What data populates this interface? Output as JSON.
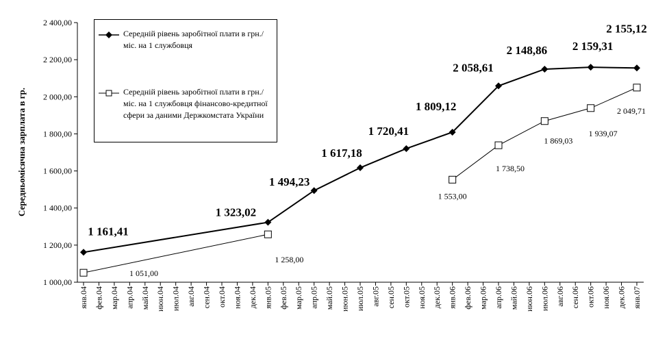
{
  "chart_data": {
    "type": "line",
    "y_label": "Середньомісячна зарплата в гр.",
    "categories": [
      "янв.04",
      "фев.04",
      "мар.04",
      "апр.04",
      "май.04",
      "июн.04",
      "июл.04",
      "авг.04",
      "сен.04",
      "окт.04",
      "ноя.04",
      "дек.04",
      "янв.05",
      "фев.05",
      "мар.05",
      "апр.05",
      "май.05",
      "июн.05",
      "июл.05",
      "авг.05",
      "сен.05",
      "окт.05",
      "ноя.05",
      "дек.05",
      "янв.06",
      "фев.06",
      "мар.06",
      "апр.06",
      "май.06",
      "июн.06",
      "июл.06",
      "авг.06",
      "сен.06",
      "окт.06",
      "ноя.06",
      "дек.06",
      "янв.07"
    ],
    "ylim": [
      1000,
      2400
    ],
    "yticks": [
      {
        "value": 1000,
        "label": "1 000,00"
      },
      {
        "value": 1200,
        "label": "1 200,00"
      },
      {
        "value": 1400,
        "label": "1 400,00"
      },
      {
        "value": 1600,
        "label": "1 600,00"
      },
      {
        "value": 1800,
        "label": "1 800,00"
      },
      {
        "value": 2000,
        "label": "2 000,00"
      },
      {
        "value": 2200,
        "label": "2 200,00"
      },
      {
        "value": 2400,
        "label": "2 400,00"
      }
    ],
    "series": [
      {
        "name": "Середній рівень заробітної плати в грн./міс. на 1 службовця",
        "color": "#000000",
        "marker": "diamond",
        "values": [
          1161.41,
          null,
          null,
          null,
          null,
          null,
          null,
          null,
          null,
          null,
          null,
          null,
          1323.02,
          null,
          null,
          1494.23,
          null,
          null,
          1617.18,
          null,
          null,
          1720.41,
          null,
          null,
          1809.12,
          null,
          null,
          2058.61,
          null,
          null,
          2148.86,
          null,
          null,
          2159.31,
          null,
          null,
          2155.12
        ],
        "value_labels": [
          "1 161,41",
          null,
          null,
          null,
          null,
          null,
          null,
          null,
          null,
          null,
          null,
          null,
          "1 323,02",
          null,
          null,
          "1 494,23",
          null,
          null,
          "1 617,18",
          null,
          null,
          "1 720,41",
          null,
          null,
          "1 809,12",
          null,
          null,
          "2 058,61",
          null,
          null,
          "2 148,86",
          null,
          null,
          "2 159,31",
          null,
          null,
          "2 155,12"
        ]
      },
      {
        "name": "Середній рівень заробітної плати в грн./міс. на 1 службовця фінансово-кредитної сфери за даними Держкомстата України",
        "color": "#000000",
        "marker": "square",
        "values": [
          1051,
          null,
          null,
          null,
          null,
          null,
          null,
          null,
          null,
          null,
          null,
          null,
          1258,
          null,
          null,
          null,
          null,
          null,
          null,
          null,
          null,
          null,
          null,
          null,
          1553,
          null,
          null,
          1738.5,
          null,
          null,
          1869.03,
          null,
          null,
          1939.07,
          null,
          null,
          2049.71
        ],
        "value_labels": [
          "1 051,00",
          null,
          null,
          null,
          null,
          null,
          null,
          null,
          null,
          null,
          null,
          null,
          "1 258,00",
          null,
          null,
          null,
          null,
          null,
          null,
          null,
          null,
          null,
          null,
          null,
          "1 553,00",
          null,
          null,
          "1 738,50",
          null,
          null,
          "1 869,03",
          null,
          null,
          "1 939,07",
          null,
          null,
          "2 049,71"
        ]
      }
    ]
  }
}
